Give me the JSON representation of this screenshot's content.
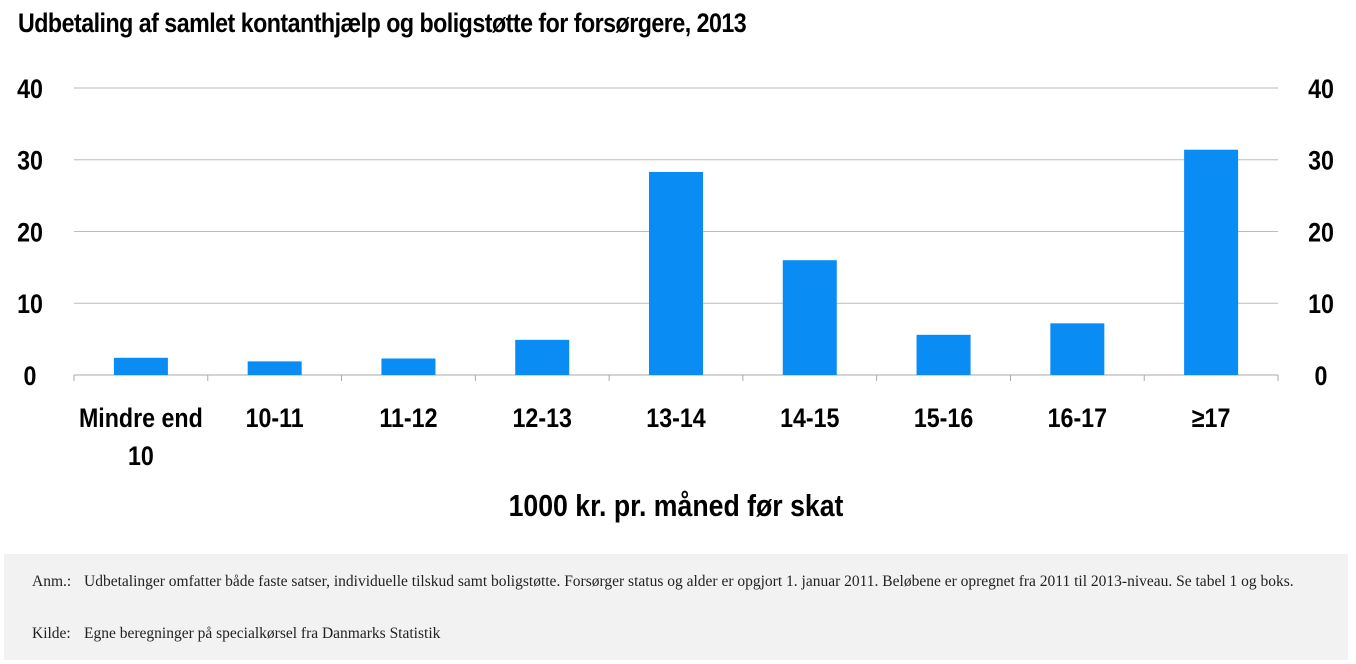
{
  "chart_data": {
    "type": "bar",
    "title": "Udbetaling af samlet kontanthjælp og boligstøtte for forsørgere, 2013",
    "xlabel": "1000 kr. pr. måned før skat",
    "ylabel": "",
    "categories": [
      "Mindre end 10",
      "10-11",
      "11-12",
      "12-13",
      "13-14",
      "14-15",
      "15-16",
      "16-17",
      "≥17"
    ],
    "category_lines": [
      [
        "Mindre end",
        "10"
      ],
      [
        "10-11"
      ],
      [
        "11-12"
      ],
      [
        "12-13"
      ],
      [
        "13-14"
      ],
      [
        "14-15"
      ],
      [
        "15-16"
      ],
      [
        "16-17"
      ],
      [
        "≥17"
      ]
    ],
    "values": [
      2.4,
      1.9,
      2.3,
      4.9,
      28.3,
      16.0,
      5.6,
      7.2,
      31.4
    ],
    "ylim": [
      0,
      40
    ],
    "yticks": [
      0,
      10,
      20,
      30,
      40
    ],
    "secondary_y_axis": true,
    "grid": true,
    "bar_color": "#0a8cf5"
  },
  "notes": {
    "anm_label": "Anm.:",
    "anm_text": "Udbetalinger omfatter både faste satser, individuelle tilskud samt boligstøtte. Forsørger status og alder er opgjort 1. januar 2011. Beløbene er opregnet fra 2011 til 2013-niveau. Se tabel 1 og boks.",
    "kilde_label": "Kilde:",
    "kilde_text": "Egne beregninger på specialkørsel fra Danmarks Statistik"
  }
}
